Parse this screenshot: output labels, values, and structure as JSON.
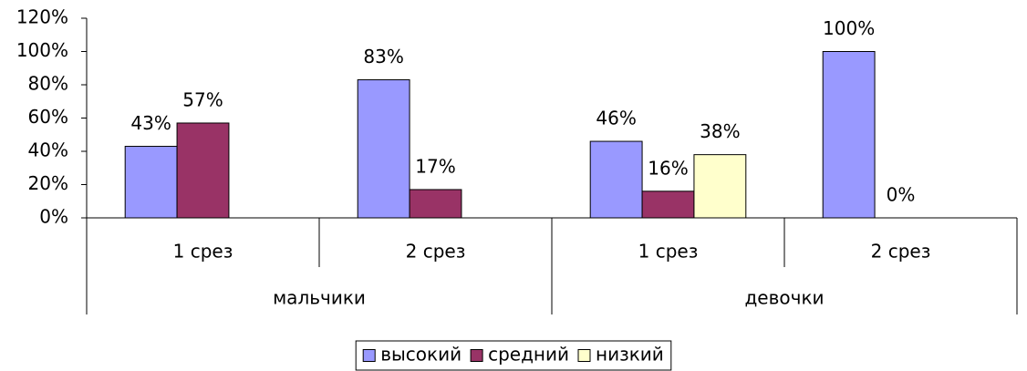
{
  "chart_data": {
    "type": "bar",
    "groups": [
      {
        "label": "мальчики",
        "categories": [
          "1 срез",
          "2 срез"
        ]
      },
      {
        "label": "девочки",
        "categories": [
          "1 срез",
          "2 срез"
        ]
      }
    ],
    "series": [
      {
        "name": "высокий",
        "color": "#9999ff",
        "values": [
          43,
          83,
          46,
          100
        ],
        "value_labels": [
          "43%",
          "83%",
          "46%",
          "100%"
        ]
      },
      {
        "name": "средний",
        "color": "#993366",
        "values": [
          57,
          17,
          16,
          0
        ],
        "value_labels": [
          "57%",
          "17%",
          "16%",
          "0%"
        ]
      },
      {
        "name": "низкий",
        "color": "#ffffcc",
        "values": [
          null,
          null,
          38,
          null
        ],
        "value_labels": [
          null,
          null,
          "38%",
          null
        ]
      }
    ],
    "ylim": [
      0,
      120
    ],
    "yticks": [
      {
        "value": 0,
        "label": "0%"
      },
      {
        "value": 20,
        "label": "20%"
      },
      {
        "value": 40,
        "label": "40%"
      },
      {
        "value": 60,
        "label": "60%"
      },
      {
        "value": 80,
        "label": "80%"
      },
      {
        "value": 100,
        "label": "100%"
      },
      {
        "value": 120,
        "label": "120%"
      }
    ],
    "grid": false,
    "legend": "bottom"
  }
}
